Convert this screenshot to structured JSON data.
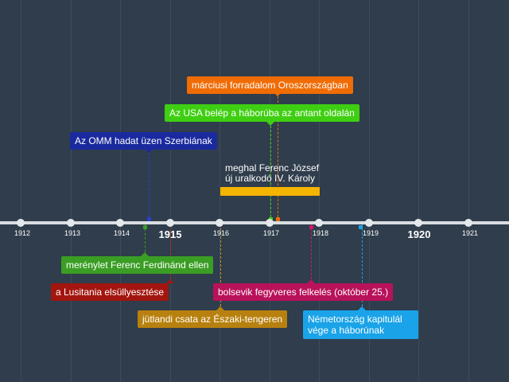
{
  "axis": {
    "ticks": [
      {
        "year": "1912",
        "major": false
      },
      {
        "year": "1913",
        "major": false
      },
      {
        "year": "1914",
        "major": false
      },
      {
        "year": "1915",
        "major": true
      },
      {
        "year": "1916",
        "major": false
      },
      {
        "year": "1917",
        "major": false
      },
      {
        "year": "1918",
        "major": false
      },
      {
        "year": "1919",
        "major": false
      },
      {
        "year": "1920",
        "major": true
      },
      {
        "year": "1921",
        "major": false
      }
    ]
  },
  "events_above": [
    {
      "key": "oroszorszag",
      "label": "márciusi forradalom Oroszországban",
      "color": "#f06c05"
    },
    {
      "key": "usa",
      "label": "Az USA belép a háborúba az antant oldalán",
      "color": "#3fcf12"
    },
    {
      "key": "omm",
      "label": "Az OMM hadat üzen Szerbiának",
      "color": "#1a2a9e"
    }
  ],
  "period": {
    "line1": "meghal Ferenc József",
    "line2": "új uralkodó IV. Károly",
    "color": "#f5b400"
  },
  "events_below": [
    {
      "key": "merenylet",
      "label": "merénylet Ferenc Ferdinánd ellen",
      "color": "#3a9e24"
    },
    {
      "key": "lusitania",
      "label": "a Lusitania elsüllyesztése",
      "color": "#a3160f"
    },
    {
      "key": "bolsevik",
      "label": "bolsevik fegyveres felkelés (október 25.)",
      "color": "#b8125a"
    },
    {
      "key": "jutland",
      "label": "jütlandi csata az Északi-tengeren",
      "color": "#b8810f"
    },
    {
      "key": "nemet",
      "label": "Németország kapitulál vége a háborúnak",
      "color": "#1aa3e8"
    }
  ]
}
